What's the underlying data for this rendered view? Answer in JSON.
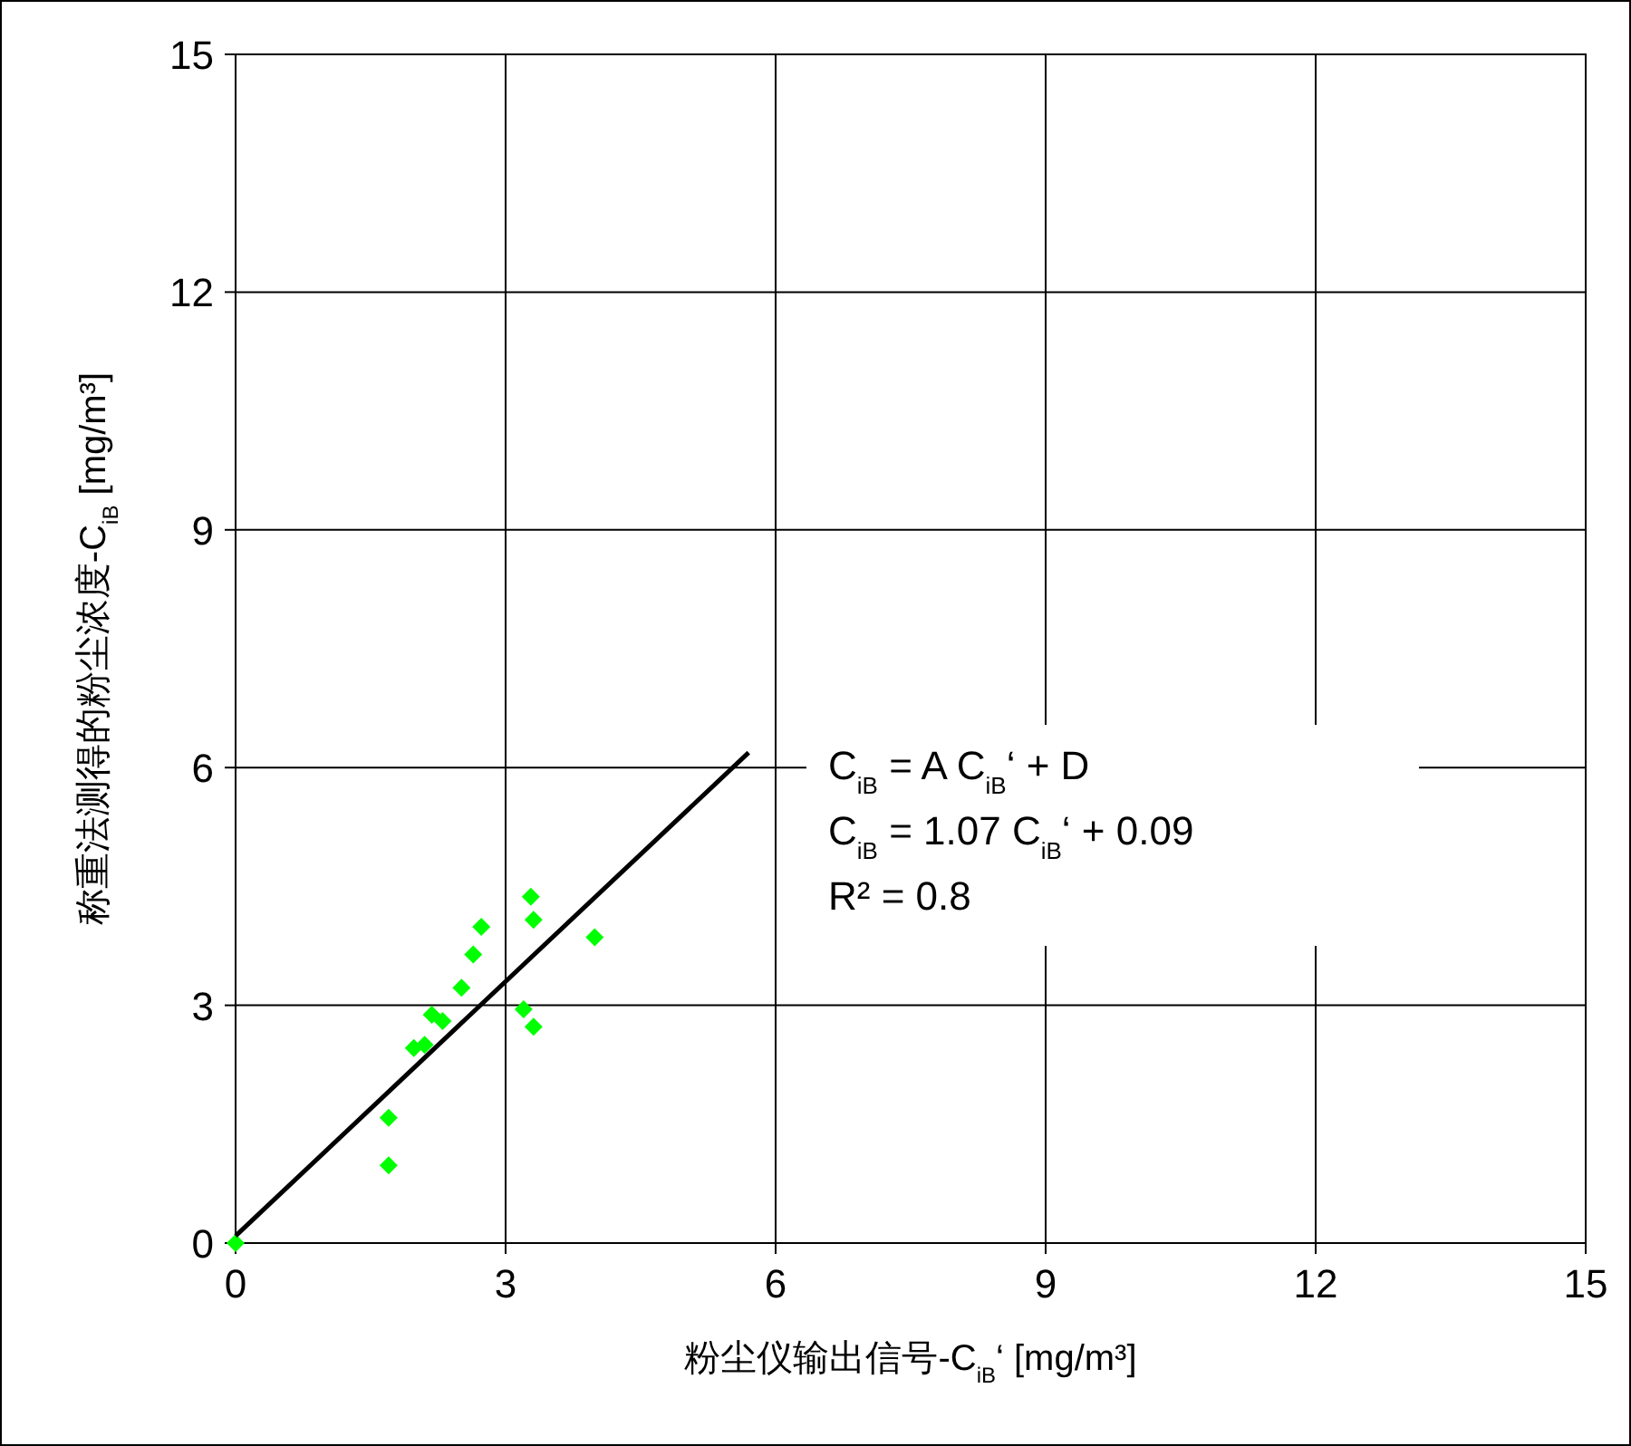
{
  "chart_data": {
    "type": "scatter",
    "xlabel": "粉尘仪输出信号-C$_{iB}$‘ [mg/m³]",
    "ylabel": "称重法测得的粉尘浓度-C$_{iB}$ [mg/m³]",
    "xlim": [
      0,
      15
    ],
    "ylim": [
      0,
      15
    ],
    "xticks": [
      0,
      3,
      6,
      9,
      12,
      15
    ],
    "yticks": [
      0,
      3,
      6,
      9,
      12,
      15
    ],
    "grid": true,
    "marker": "diamond",
    "series": [
      {
        "color": "#00ff00",
        "x": [
          0,
          1.7,
          1.7,
          1.98,
          2.1,
          2.18,
          2.3,
          2.51,
          2.64,
          2.73,
          3.2,
          3.31,
          3.28,
          3.31,
          3.99
        ],
        "values": [
          0,
          1.58,
          0.98,
          2.46,
          2.5,
          2.88,
          2.8,
          3.22,
          3.64,
          3.99,
          2.95,
          2.73,
          4.37,
          4.08,
          3.86
        ]
      },
      {
        "type": "line",
        "color": "#000000",
        "marker": "none",
        "x": [
          0,
          5.7
        ],
        "values": [
          0.09,
          6.19
        ]
      }
    ],
    "annotations": [
      "C$_{iB}$ = A C$_{iB}$‘ + D",
      "C$_{iB}$ = 1.07 C$_{iB}$‘ + 0.09",
      "R² = 0.8"
    ]
  }
}
